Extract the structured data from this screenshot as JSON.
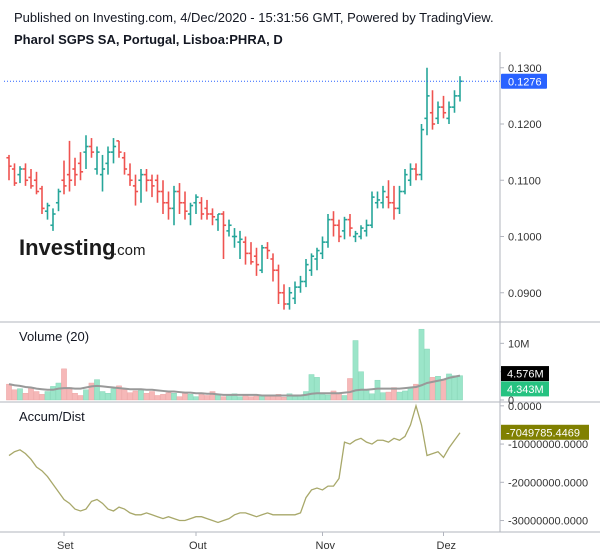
{
  "header": {
    "published": "Published on Investing.com, 4/Dec/2020 - 15:31:56 GMT, Powered by TradingView.",
    "symbol": "Pharol SGPS SA, Portugal, Lisboa:PHRA, D"
  },
  "logo": {
    "main": "Investing",
    "sub": ".com"
  },
  "colors": {
    "up": "#26a69a",
    "down": "#ef5350",
    "vol_up": "#9be5c9",
    "vol_down": "#f6b8b8",
    "vol_ma": "#999999",
    "ad_line": "#a8a86a",
    "ad_tag": "#808000",
    "last_price_tag": "#2962ff",
    "vol_tag_dark": "#000000",
    "vol_tag_green": "#26c281"
  },
  "chart_data": [
    {
      "type": "ohlc",
      "pane": "price",
      "xlabels": [
        "Set",
        "Out",
        "Nov",
        "Dez"
      ],
      "yticks": [
        "0.1300",
        "0.1200",
        "0.1100",
        "0.1000",
        "0.0900"
      ],
      "ylim": [
        0.0848,
        0.1328
      ],
      "last_price": "0.1276",
      "bars": [
        [
          0.114,
          0.1145,
          0.11,
          0.1125
        ],
        [
          0.112,
          0.113,
          0.109,
          0.1095
        ],
        [
          0.111,
          0.1125,
          0.1095,
          0.112
        ],
        [
          0.112,
          0.113,
          0.109,
          0.11
        ],
        [
          0.1105,
          0.112,
          0.1085,
          0.109
        ],
        [
          0.11,
          0.1115,
          0.1075,
          0.108
        ],
        [
          0.1085,
          0.109,
          0.104,
          0.105
        ],
        [
          0.1045,
          0.106,
          0.103,
          0.1055
        ],
        [
          0.102,
          0.105,
          0.101,
          0.104
        ],
        [
          0.106,
          0.1085,
          0.1045,
          0.108
        ],
        [
          0.11,
          0.1135,
          0.1075,
          0.109
        ],
        [
          0.111,
          0.117,
          0.108,
          0.11
        ],
        [
          0.112,
          0.114,
          0.109,
          0.111
        ],
        [
          0.113,
          0.115,
          0.11,
          0.1115
        ],
        [
          0.115,
          0.118,
          0.112,
          0.116
        ],
        [
          0.116,
          0.1175,
          0.114,
          0.115
        ],
        [
          0.112,
          0.116,
          0.111,
          0.115
        ],
        [
          0.111,
          0.1145,
          0.108,
          0.112
        ],
        [
          0.113,
          0.116,
          0.111,
          0.115
        ],
        [
          0.115,
          0.1175,
          0.113,
          0.116
        ],
        [
          0.117,
          0.117,
          0.114,
          0.115
        ],
        [
          0.114,
          0.115,
          0.111,
          0.112
        ],
        [
          0.111,
          0.113,
          0.109,
          0.11
        ],
        [
          0.109,
          0.111,
          0.1055,
          0.108
        ],
        [
          0.11,
          0.112,
          0.106,
          0.111
        ],
        [
          0.111,
          0.112,
          0.108,
          0.11
        ],
        [
          0.11,
          0.111,
          0.107,
          0.109
        ],
        [
          0.11,
          0.111,
          0.106,
          0.108
        ],
        [
          0.108,
          0.11,
          0.104,
          0.106
        ],
        [
          0.106,
          0.108,
          0.103,
          0.105
        ],
        [
          0.105,
          0.109,
          0.102,
          0.108
        ],
        [
          0.108,
          0.1095,
          0.104,
          0.106
        ],
        [
          0.106,
          0.108,
          0.103,
          0.1045
        ],
        [
          0.104,
          0.106,
          0.102,
          0.1055
        ],
        [
          0.106,
          0.1075,
          0.104,
          0.107
        ],
        [
          0.106,
          0.107,
          0.103,
          0.104
        ],
        [
          0.105,
          0.1065,
          0.103,
          0.104
        ],
        [
          0.104,
          0.105,
          0.102,
          0.1035
        ],
        [
          0.103,
          0.104,
          0.101,
          0.104
        ],
        [
          0.104,
          0.1045,
          0.096,
          0.102
        ],
        [
          0.101,
          0.103,
          0.1,
          0.102
        ],
        [
          0.1,
          0.1015,
          0.098,
          0.1
        ],
        [
          0.099,
          0.101,
          0.096,
          0.0995
        ],
        [
          0.099,
          0.1,
          0.095,
          0.097
        ],
        [
          0.097,
          0.099,
          0.095,
          0.0955
        ],
        [
          0.0965,
          0.098,
          0.093,
          0.095
        ],
        [
          0.094,
          0.0985,
          0.0935,
          0.098
        ],
        [
          0.098,
          0.099,
          0.096,
          0.0975
        ],
        [
          0.096,
          0.097,
          0.092,
          0.094
        ],
        [
          0.094,
          0.095,
          0.088,
          0.09
        ],
        [
          0.09,
          0.0915,
          0.087,
          0.088
        ],
        [
          0.088,
          0.091,
          0.087,
          0.09
        ],
        [
          0.089,
          0.092,
          0.088,
          0.091
        ],
        [
          0.091,
          0.093,
          0.09,
          0.092
        ],
        [
          0.092,
          0.096,
          0.091,
          0.095
        ],
        [
          0.094,
          0.097,
          0.093,
          0.0965
        ],
        [
          0.096,
          0.098,
          0.094,
          0.0975
        ],
        [
          0.097,
          0.1,
          0.096,
          0.099
        ],
        [
          0.099,
          0.104,
          0.098,
          0.103
        ],
        [
          0.103,
          0.1045,
          0.1,
          0.102
        ],
        [
          0.102,
          0.103,
          0.099,
          0.1
        ],
        [
          0.101,
          0.1035,
          0.0995,
          0.103
        ],
        [
          0.103,
          0.104,
          0.1,
          0.1015
        ],
        [
          0.1,
          0.101,
          0.099,
          0.1005
        ],
        [
          0.1,
          0.102,
          0.0995,
          0.1015
        ],
        [
          0.101,
          0.103,
          0.1,
          0.102
        ],
        [
          0.102,
          0.108,
          0.1015,
          0.107
        ],
        [
          0.106,
          0.108,
          0.105,
          0.1065
        ],
        [
          0.106,
          0.109,
          0.105,
          0.108
        ],
        [
          0.107,
          0.11,
          0.105,
          0.106
        ],
        [
          0.106,
          0.109,
          0.103,
          0.105
        ],
        [
          0.105,
          0.109,
          0.104,
          0.108
        ],
        [
          0.108,
          0.112,
          0.1075,
          0.111
        ],
        [
          0.11,
          0.113,
          0.109,
          0.112
        ],
        [
          0.112,
          0.113,
          0.11,
          0.111
        ],
        [
          0.111,
          0.12,
          0.11,
          0.119
        ],
        [
          0.121,
          0.13,
          0.118,
          0.125
        ],
        [
          0.122,
          0.126,
          0.119,
          0.12
        ],
        [
          0.121,
          0.124,
          0.12,
          0.123
        ],
        [
          0.123,
          0.125,
          0.121,
          0.122
        ],
        [
          0.121,
          0.124,
          0.12,
          0.123
        ],
        [
          0.123,
          0.126,
          0.122,
          0.125
        ],
        [
          0.125,
          0.1285,
          0.124,
          0.1276
        ]
      ]
    },
    {
      "type": "bar",
      "pane": "volume",
      "title": "Volume (20)",
      "yticks": [
        "10M",
        "5M",
        "0"
      ],
      "ylim": [
        0,
        12.0
      ],
      "unit": "M",
      "tags": [
        "4.576M",
        "4.343M"
      ],
      "values": [
        2.8,
        1.8,
        2.0,
        1.2,
        2.2,
        1.5,
        1.0,
        1.5,
        2.4,
        3.0,
        5.5,
        2.2,
        1.2,
        0.8,
        1.8,
        3.0,
        3.6,
        1.5,
        1.2,
        2.0,
        2.5,
        1.8,
        1.3,
        1.6,
        1.8,
        1.2,
        1.5,
        0.8,
        1.0,
        1.3,
        1.2,
        0.6,
        1.4,
        1.0,
        0.6,
        1.2,
        0.8,
        1.5,
        1.0,
        0.6,
        0.8,
        1.1,
        0.6,
        0.9,
        0.6,
        0.7,
        0.9,
        0.9,
        0.7,
        1.0,
        0.5,
        1.1,
        0.6,
        0.9,
        1.5,
        4.5,
        4.0,
        1.0,
        0.9,
        1.6,
        1.2,
        0.8,
        3.8,
        10.5,
        5.0,
        1.8,
        1.1,
        3.5,
        1.3,
        1.4,
        2.2,
        1.4,
        1.6,
        2.2,
        2.8,
        12.5,
        9.0,
        4.0,
        4.2,
        3.5,
        4.6,
        4.3,
        4.3
      ],
      "ma": [
        2.8,
        2.6,
        2.5,
        2.3,
        2.2,
        2.0,
        1.9,
        1.8,
        1.8,
        2.0,
        2.1,
        2.1,
        2.0,
        2.0,
        2.2,
        2.4,
        2.5,
        2.4,
        2.3,
        2.2,
        2.1,
        2.0,
        1.9,
        1.9,
        1.9,
        1.8,
        1.8,
        1.7,
        1.6,
        1.5,
        1.5,
        1.4,
        1.3,
        1.3,
        1.2,
        1.2,
        1.1,
        1.1,
        1.0,
        0.9,
        0.9,
        0.9,
        0.9,
        0.9,
        0.9,
        0.9,
        0.8,
        0.8,
        0.8,
        0.8,
        0.8,
        0.8,
        0.8,
        0.8,
        0.9,
        1.1,
        1.2,
        1.2,
        1.2,
        1.2,
        1.2,
        1.3,
        1.4,
        1.7,
        1.8,
        1.8,
        1.9,
        2.0,
        2.0,
        2.0,
        2.0,
        2.0,
        2.1,
        2.2,
        2.3,
        2.6,
        3.0,
        3.2,
        3.4,
        3.6,
        3.9,
        4.1,
        4.3
      ]
    },
    {
      "type": "line",
      "pane": "accum_dist",
      "title": "Accum/Dist",
      "yticks": [
        "0.0000",
        "-10000000.0000",
        "-20000000.0000",
        "-30000000.0000"
      ],
      "ylim": [
        -33000000,
        1000000
      ],
      "last_value": "-7049785.4469",
      "values": [
        -13000000,
        -12000000,
        -11500000,
        -12500000,
        -14000000,
        -16000000,
        -17000000,
        -18500000,
        -20500000,
        -22500000,
        -24500000,
        -25500000,
        -27000000,
        -27500000,
        -27000000,
        -25000000,
        -24500000,
        -25500000,
        -27000000,
        -27500000,
        -26500000,
        -27000000,
        -28000000,
        -28500000,
        -28500000,
        -28000000,
        -28500000,
        -29000000,
        -29500000,
        -29000000,
        -29500000,
        -30000000,
        -30000000,
        -29500000,
        -29000000,
        -29000000,
        -29500000,
        -30000000,
        -30500000,
        -30000000,
        -29500000,
        -28500000,
        -28000000,
        -28000000,
        -28500000,
        -29000000,
        -28500000,
        -28000000,
        -28500000,
        -28500000,
        -28500000,
        -28500000,
        -28500000,
        -28000000,
        -24000000,
        -22000000,
        -21500000,
        -22000000,
        -21000000,
        -21000000,
        -19000000,
        -9500000,
        -10000000,
        -9000000,
        -8500000,
        -9500000,
        -10000000,
        -9000000,
        -9000000,
        -9500000,
        -8500000,
        -9000000,
        -8000000,
        -5000000,
        0,
        -5000000,
        -13000000,
        -12500000,
        -12000000,
        -13500000,
        -11000000,
        -9000000,
        -7049785
      ]
    }
  ]
}
